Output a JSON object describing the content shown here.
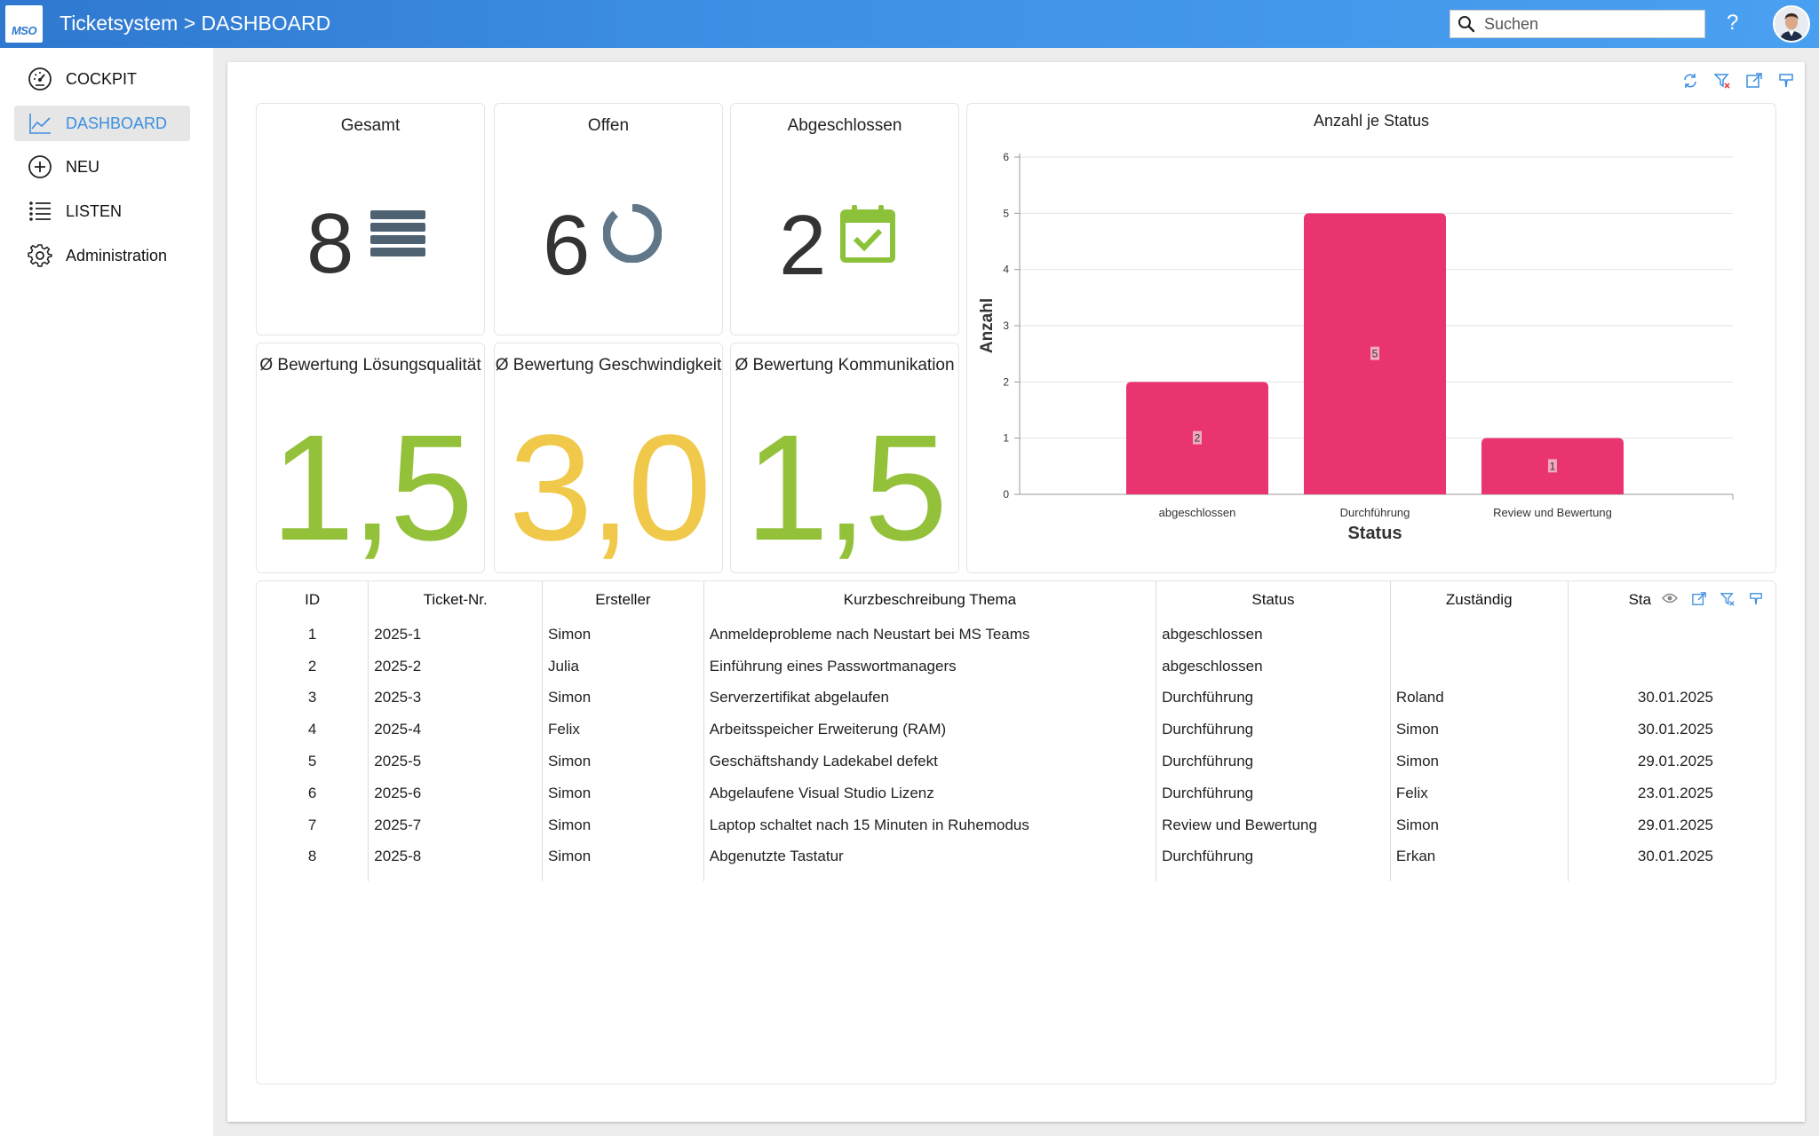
{
  "header": {
    "logo_text": "MSO",
    "title": "Ticketsystem > DASHBOARD",
    "search_placeholder": "Suchen",
    "help_label": "?"
  },
  "sidebar": {
    "items": [
      {
        "label": "COCKPIT",
        "icon": "gauge-icon"
      },
      {
        "label": "DASHBOARD",
        "icon": "chart-line-icon",
        "active": true
      },
      {
        "label": "NEU",
        "icon": "plus-circle-icon"
      },
      {
        "label": "LISTEN",
        "icon": "list-icon"
      },
      {
        "label": "Administration",
        "icon": "gear-icon"
      }
    ]
  },
  "stats": {
    "gesamt": {
      "title": "Gesamt",
      "value": "8",
      "icon": "list-lines-icon"
    },
    "offen": {
      "title": "Offen",
      "value": "6",
      "icon": "ring-icon"
    },
    "abgeschlossen": {
      "title": "Abgeschlossen",
      "value": "2",
      "icon": "calendar-check-icon"
    }
  },
  "ratings": {
    "loesung": {
      "title": "Ø Bewertung Lösungsqualität",
      "value": "1,5",
      "color": "#94c13a"
    },
    "geschw": {
      "title": "Ø Bewertung Geschwindigkeit",
      "value": "3,0",
      "color": "#f0c94b"
    },
    "komm": {
      "title": "Ø Bewertung Kommunikation",
      "value": "1,5",
      "color": "#94c13a"
    }
  },
  "chart_data": {
    "type": "bar",
    "title": "Anzahl je Status",
    "xlabel": "Status",
    "ylabel": "Anzahl",
    "categories": [
      "abgeschlossen",
      "Durchführung",
      "Review und Bewertung"
    ],
    "values": [
      2,
      5,
      1
    ],
    "ylim": [
      0,
      6
    ],
    "yticks": [
      0,
      1,
      2,
      3,
      4,
      5,
      6
    ],
    "bar_color": "#e9346f",
    "grid": true
  },
  "table": {
    "columns": [
      "ID",
      "Ticket-Nr.",
      "Ersteller",
      "Kurzbeschreibung Thema",
      "Status",
      "Zuständig",
      "Sta"
    ],
    "rows": [
      [
        "1",
        "2025-1",
        "Simon",
        "Anmeldeprobleme nach Neustart bei MS Teams",
        "abgeschlossen",
        "",
        ""
      ],
      [
        "2",
        "2025-2",
        "Julia",
        "Einführung eines Passwortmanagers",
        "abgeschlossen",
        "",
        ""
      ],
      [
        "3",
        "2025-3",
        "Simon",
        "Serverzertifikat abgelaufen",
        "Durchführung",
        "Roland",
        "30.01.2025"
      ],
      [
        "4",
        "2025-4",
        "Felix",
        "Arbeitsspeicher Erweiterung (RAM)",
        "Durchführung",
        "Simon",
        "30.01.2025"
      ],
      [
        "5",
        "2025-5",
        "Simon",
        "Geschäftshandy Ladekabel defekt",
        "Durchführung",
        "Simon",
        "29.01.2025"
      ],
      [
        "6",
        "2025-6",
        "Simon",
        "Abgelaufene Visual Studio Lizenz",
        "Durchführung",
        "Felix",
        "23.01.2025"
      ],
      [
        "7",
        "2025-7",
        "Simon",
        "Laptop schaltet nach 15 Minuten in Ruhemodus",
        "Review und Bewertung",
        "Simon",
        "29.01.2025"
      ],
      [
        "8",
        "2025-8",
        "Simon",
        "Abgenutzte Tastatur",
        "Durchführung",
        "Erkan",
        "30.01.2025"
      ]
    ]
  }
}
